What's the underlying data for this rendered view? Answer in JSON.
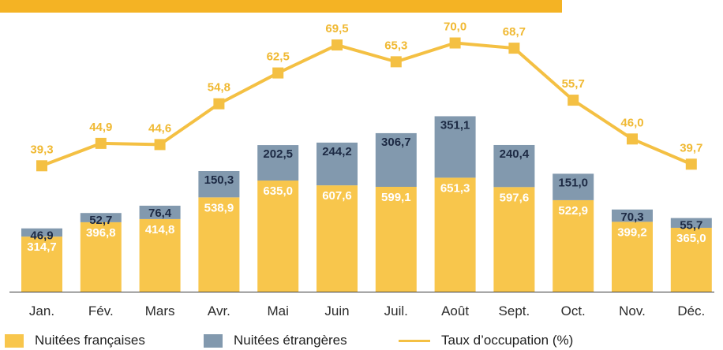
{
  "colors": {
    "francaises": "#F8C64C",
    "etrangeres": "#8299AE",
    "taux": "#F4C043",
    "banner": "#F4B324",
    "axis_text": "#2b2b2b",
    "dark_label": "#1d2a44",
    "light_label": "#ffffff",
    "taux_label": "#F0B933"
  },
  "chart_data": {
    "type": "bar",
    "stacked": true,
    "categories": [
      "Jan.",
      "Fév.",
      "Mars",
      "Avr.",
      "Mai",
      "Juin",
      "Juil.",
      "Août",
      "Sept.",
      "Oct.",
      "Nov.",
      "Déc."
    ],
    "series": [
      {
        "name": "Nuitées françaises",
        "values": [
          314.7,
          396.8,
          414.8,
          538.9,
          635.0,
          607.6,
          599.1,
          651.3,
          597.6,
          522.9,
          399.2,
          365.0
        ],
        "labels": [
          "314,7",
          "396,8",
          "414,8",
          "538,9",
          "635,0",
          "607,6",
          "599,1",
          "651,3",
          "597,6",
          "522,9",
          "399,2",
          "365,0"
        ]
      },
      {
        "name": "Nuitées étrangères",
        "values": [
          46.9,
          52.7,
          76.4,
          150.3,
          202.5,
          244.2,
          306.7,
          351.1,
          240.4,
          151.0,
          70.3,
          55.7
        ],
        "labels": [
          "46,9",
          "52,7",
          "76,4",
          "150,3",
          "202,5",
          "244,2",
          "306,7",
          "351,1",
          "240,4",
          "151,0",
          "70,3",
          "55,7"
        ]
      }
    ],
    "line_series": {
      "name": "Taux d’occupation (%)",
      "values": [
        39.3,
        44.9,
        44.6,
        54.8,
        62.5,
        69.5,
        65.3,
        70.0,
        68.7,
        55.7,
        46.0,
        39.7
      ],
      "labels": [
        "39,3",
        "44,9",
        "44,6",
        "54,8",
        "62,5",
        "69,5",
        "65,3",
        "70,0",
        "68,7",
        "55,7",
        "46,0",
        "39,7"
      ]
    },
    "legend": {
      "placement": "bottom-left",
      "items": [
        "Nuitées françaises",
        "Nuitées étrangères",
        "Taux d’occupation (%)"
      ]
    },
    "grid": false
  }
}
